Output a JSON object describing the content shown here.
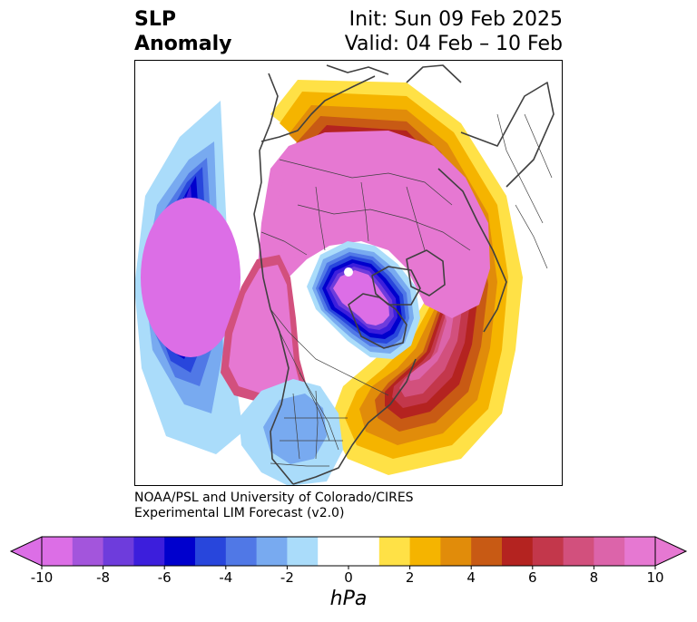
{
  "header": {
    "title_lines": [
      "SLP",
      "Anomaly"
    ],
    "init_label": "Init: Sun 09 Feb 2025",
    "valid_label": "Valid: 04 Feb – 10 Feb"
  },
  "credits": {
    "line1": "NOAA/PSL and University of Colorado/CIRES",
    "line2": "Experimental LIM Forecast (v2.0)"
  },
  "colorbar": {
    "unit": "hPa",
    "ticks": [
      -10,
      -8,
      -6,
      -4,
      -2,
      0,
      2,
      4,
      6,
      8,
      10
    ],
    "colors": [
      "#dc6ee6",
      "#a355dc",
      "#6e3cdc",
      "#3c1edc",
      "#0000cd",
      "#2846dc",
      "#5078e6",
      "#78aaf0",
      "#aadcfa",
      "#ffffff",
      "#ffffff",
      "#ffe146",
      "#f5b400",
      "#e18c0a",
      "#c85a14",
      "#b42320",
      "#c3374b",
      "#d2507d",
      "#dc64aa",
      "#e678d2"
    ]
  },
  "map_data": {
    "projection": "north-polar-stereographic",
    "field": "SLP Anomaly",
    "features": [
      {
        "name": "north-pacific-low",
        "sign": "negative",
        "peak_hpa": -10
      },
      {
        "name": "arctic-canada-low",
        "sign": "negative",
        "peak_hpa": -10
      },
      {
        "name": "polar-eurasian-high",
        "sign": "positive",
        "peak_hpa": 10
      },
      {
        "name": "alaska-western-canada-high",
        "sign": "positive",
        "peak_hpa": 10
      },
      {
        "name": "north-atlantic-high",
        "sign": "positive",
        "peak_hpa": 8
      },
      {
        "name": "central-us-weak-low",
        "sign": "negative",
        "peak_hpa": -2
      }
    ]
  }
}
